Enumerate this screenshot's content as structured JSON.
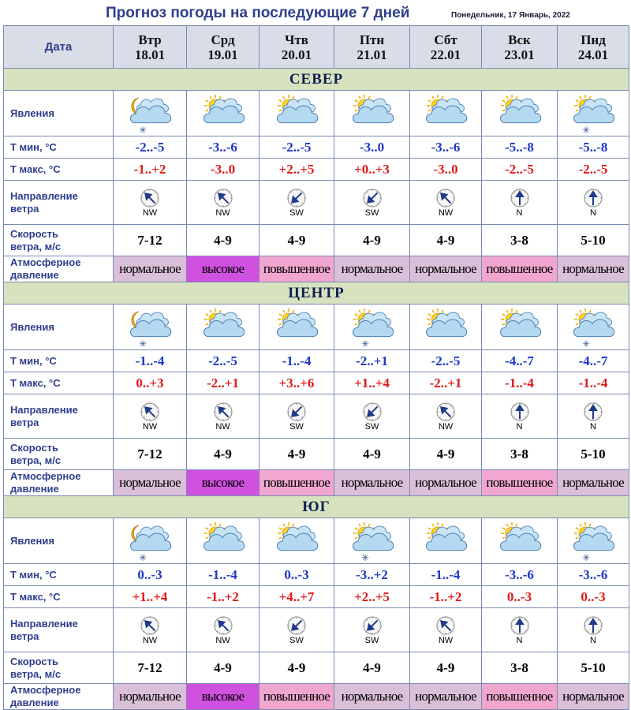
{
  "title": "Прогноз погоды на последующие 7 дней",
  "date_line": "Понедельник, 17 Январь, 2022",
  "header": {
    "date_label": "Дата"
  },
  "days": [
    {
      "name": "Втр",
      "date": "18.01"
    },
    {
      "name": "Срд",
      "date": "19.01"
    },
    {
      "name": "Чтв",
      "date": "20.01"
    },
    {
      "name": "Птн",
      "date": "21.01"
    },
    {
      "name": "Сбт",
      "date": "22.01"
    },
    {
      "name": "Вск",
      "date": "23.01"
    },
    {
      "name": "Пнд",
      "date": "24.01"
    }
  ],
  "row_labels": {
    "phenomena": "Явления",
    "tmin": "Т мин, °С",
    "tmax": "Т макс, °С",
    "wind_dir_1": "Направление",
    "wind_dir_2": "ветра",
    "wind_speed_1": "Скорость",
    "wind_speed_2": "ветра, м/с",
    "pressure_1": "Атмосферное",
    "pressure_2": "давление"
  },
  "colors": {
    "tmin": "#1d36c8",
    "tmax": "#e01818",
    "region_band": "#d7e3bf",
    "pressure_normal": "#dabfd8",
    "pressure_high": "#d050e0",
    "pressure_elevated": "#f0a6cf"
  },
  "regions": [
    {
      "name": "СЕВЕР",
      "icons": [
        "moon-cloud-snow-icon",
        "sun-cloud-icon",
        "sun-cloud-icon",
        "sun-cloud-icon",
        "sun-cloud-icon",
        "sun-cloud-icon",
        "sun-cloud-snow-icon"
      ],
      "tmin": [
        "-2..-5",
        "-3..-6",
        "-2..-5",
        "-3..0",
        "-3..-6",
        "-5..-8",
        "-5..-8"
      ],
      "tmax": [
        "-1..+2",
        "-3..0",
        "+2..+5",
        "+0..+3",
        "-3..0",
        "-2..-5",
        "-2..-5"
      ],
      "wind_dir": [
        "NW",
        "NW",
        "SW",
        "SW",
        "NW",
        "N",
        "N"
      ],
      "wind_speed": [
        "7-12",
        "4-9",
        "4-9",
        "4-9",
        "4-9",
        "3-8",
        "5-10"
      ],
      "pressure": [
        "нормальное",
        "высокое",
        "повышенное",
        "нормальное",
        "нормальное",
        "повышенное",
        "нормальное"
      ],
      "pressure_level": [
        "normal",
        "high",
        "elevated",
        "normal",
        "normal",
        "elevated",
        "normal"
      ]
    },
    {
      "name": "ЦЕНТР",
      "icons": [
        "moon-cloud-snow-icon",
        "sun-cloud-icon",
        "sun-cloud-icon",
        "sun-cloud-snow-icon",
        "sun-cloud-icon",
        "sun-cloud-icon",
        "sun-cloud-snow-icon"
      ],
      "tmin": [
        "-1..-4",
        "-2..-5",
        "-1..-4",
        "-2..+1",
        "-2..-5",
        "-4..-7",
        "-4..-7"
      ],
      "tmax": [
        "0..+3",
        "-2..+1",
        "+3..+6",
        "+1..+4",
        "-2..+1",
        "-1..-4",
        "-1..-4"
      ],
      "wind_dir": [
        "NW",
        "NW",
        "SW",
        "SW",
        "NW",
        "N",
        "N"
      ],
      "wind_speed": [
        "7-12",
        "4-9",
        "4-9",
        "4-9",
        "4-9",
        "3-8",
        "5-10"
      ],
      "pressure": [
        "нормальное",
        "высокое",
        "повышенное",
        "нормальное",
        "нормальное",
        "повышенное",
        "нормальное"
      ],
      "pressure_level": [
        "normal",
        "high",
        "elevated",
        "normal",
        "normal",
        "elevated",
        "normal"
      ]
    },
    {
      "name": "ЮГ",
      "icons": [
        "moon-cloud-snow-icon",
        "sun-cloud-icon",
        "sun-cloud-icon",
        "sun-cloud-snow-icon",
        "sun-cloud-icon",
        "sun-cloud-icon",
        "sun-cloud-snow-icon"
      ],
      "tmin": [
        "0..-3",
        "-1..-4",
        "0..-3",
        "-3..+2",
        "-1..-4",
        "-3..-6",
        "-3..-6"
      ],
      "tmax": [
        "+1..+4",
        "-1..+2",
        "+4..+7",
        "+2..+5",
        "-1..+2",
        "0..-3",
        "0..-3"
      ],
      "wind_dir": [
        "NW",
        "NW",
        "SW",
        "SW",
        "NW",
        "N",
        "N"
      ],
      "wind_speed": [
        "7-12",
        "4-9",
        "4-9",
        "4-9",
        "4-9",
        "3-8",
        "5-10"
      ],
      "pressure": [
        "нормальное",
        "высокое",
        "повышенное",
        "нормальное",
        "нормальное",
        "повышенное",
        "нормальное"
      ],
      "pressure_level": [
        "normal",
        "high",
        "elevated",
        "normal",
        "normal",
        "elevated",
        "normal"
      ]
    }
  ]
}
